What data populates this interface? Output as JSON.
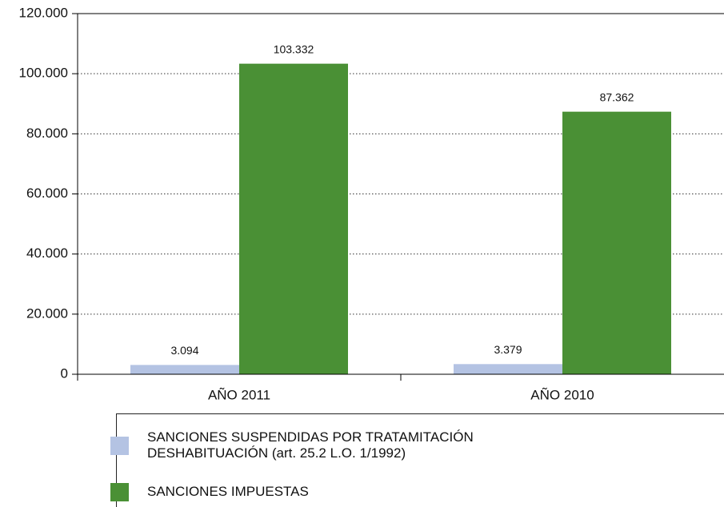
{
  "chart_data": {
    "type": "bar",
    "categories": [
      "AÑO 2011",
      "AÑO 2010"
    ],
    "series": [
      {
        "name": "SANCIONES SUSPENDIDAS POR TRATAMITACIÓN DESHABITUACIÓN (art. 25.2  L.O. 1/1992)",
        "color": "#b4c3e3",
        "values": [
          3094,
          3379
        ],
        "value_labels": [
          "3.094",
          "3.379"
        ]
      },
      {
        "name": "SANCIONES IMPUESTAS",
        "color": "#4a9035",
        "values": [
          103332,
          87362
        ],
        "value_labels": [
          "103.332",
          "87.362"
        ]
      }
    ],
    "ylim": [
      0,
      120000
    ],
    "yticks": [
      0,
      {
        "value": 20000,
        "label": "20.000"
      },
      {
        "value": 40000,
        "label": "40.000"
      },
      {
        "value": 60000,
        "label": "60.000"
      },
      {
        "value": 80000,
        "label": "80.000"
      },
      {
        "value": 100000,
        "label": "100.000"
      },
      {
        "value": 120000,
        "label": "120.000"
      }
    ],
    "grid": true
  }
}
